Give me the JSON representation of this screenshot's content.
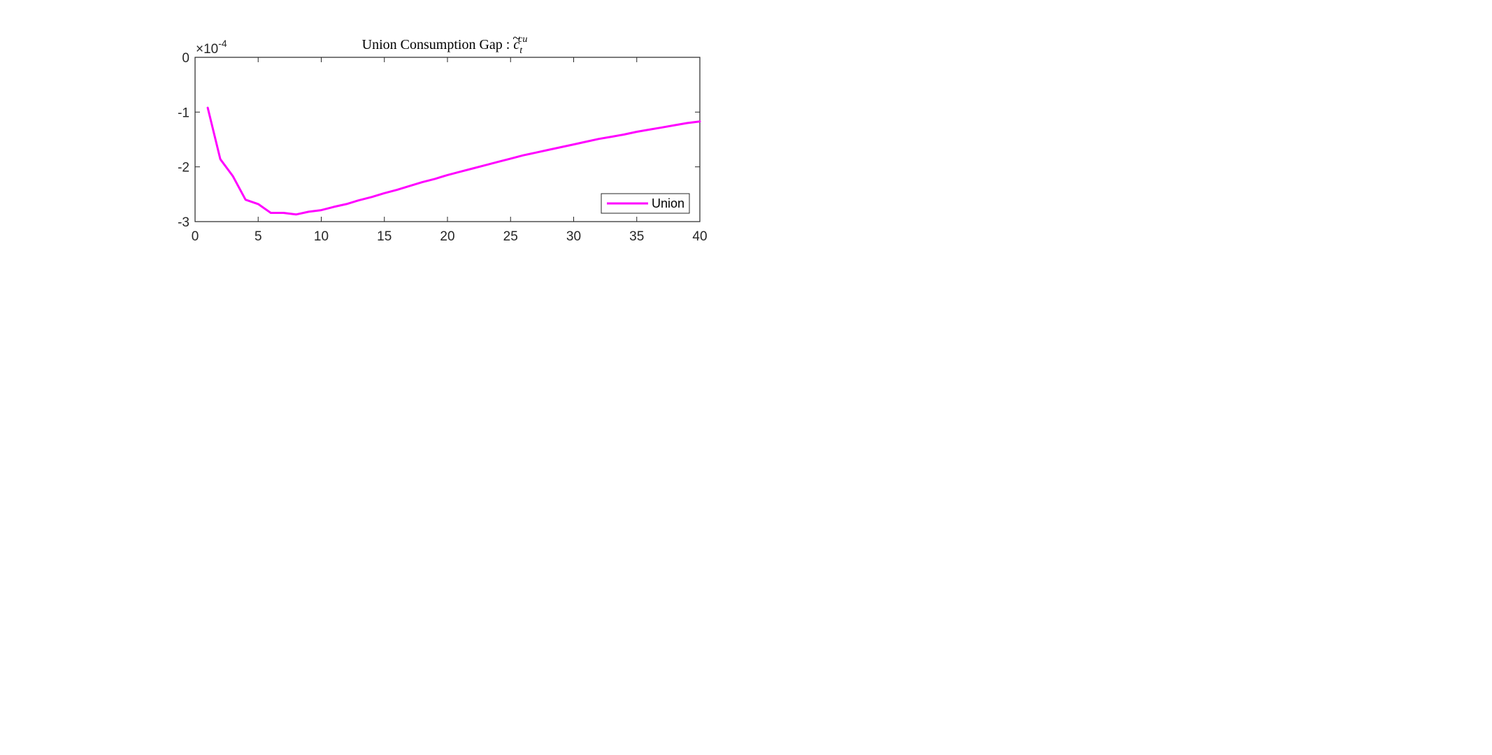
{
  "chart_data": {
    "type": "line",
    "title": {
      "prefix": "Union Consumption Gap : ",
      "symbol_base": "c",
      "symbol_accent": "~",
      "symbol_subscript": "t",
      "symbol_superscript": "cu"
    },
    "xlabel": "",
    "ylabel": "",
    "xlim": [
      0,
      40
    ],
    "ylim": [
      -3,
      0
    ],
    "xticks": [
      0,
      5,
      10,
      15,
      20,
      25,
      30,
      35,
      40
    ],
    "yticks": [
      0,
      -1,
      -2,
      -3
    ],
    "y_exponent": {
      "base": "×10",
      "power": "-4"
    },
    "grid": false,
    "legend": {
      "placement": "bottom-right",
      "entries": [
        "Union"
      ]
    },
    "series": [
      {
        "name": "Union",
        "color": "#ff00ff",
        "x": [
          1,
          2,
          3,
          4,
          5,
          6,
          7,
          8,
          9,
          10,
          11,
          12,
          13,
          14,
          15,
          16,
          17,
          18,
          19,
          20,
          21,
          22,
          23,
          24,
          25,
          26,
          27,
          28,
          29,
          30,
          31,
          32,
          33,
          34,
          35,
          36,
          37,
          38,
          39,
          40
        ],
        "y": [
          -0.92,
          -1.86,
          -2.17,
          -2.6,
          -2.68,
          -2.84,
          -2.84,
          -2.87,
          -2.82,
          -2.79,
          -2.73,
          -2.68,
          -2.61,
          -2.55,
          -2.48,
          -2.42,
          -2.35,
          -2.28,
          -2.22,
          -2.15,
          -2.09,
          -2.03,
          -1.97,
          -1.91,
          -1.85,
          -1.79,
          -1.74,
          -1.69,
          -1.64,
          -1.59,
          -1.54,
          -1.49,
          -1.45,
          -1.41,
          -1.36,
          -1.32,
          -1.28,
          -1.24,
          -1.2,
          -1.17
        ]
      }
    ]
  }
}
